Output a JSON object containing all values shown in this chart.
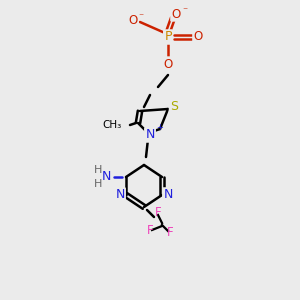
{
  "bg_color": "#ebebeb",
  "bond_color": "#000000",
  "bond_width": 1.8,
  "atom_colors": {
    "C": "#000000",
    "N": "#2020dd",
    "O": "#cc2200",
    "P": "#cc8800",
    "S": "#aaaa00",
    "F": "#ee44bb",
    "H": "#666666"
  },
  "figsize": [
    3.0,
    3.0
  ],
  "dpi": 100
}
